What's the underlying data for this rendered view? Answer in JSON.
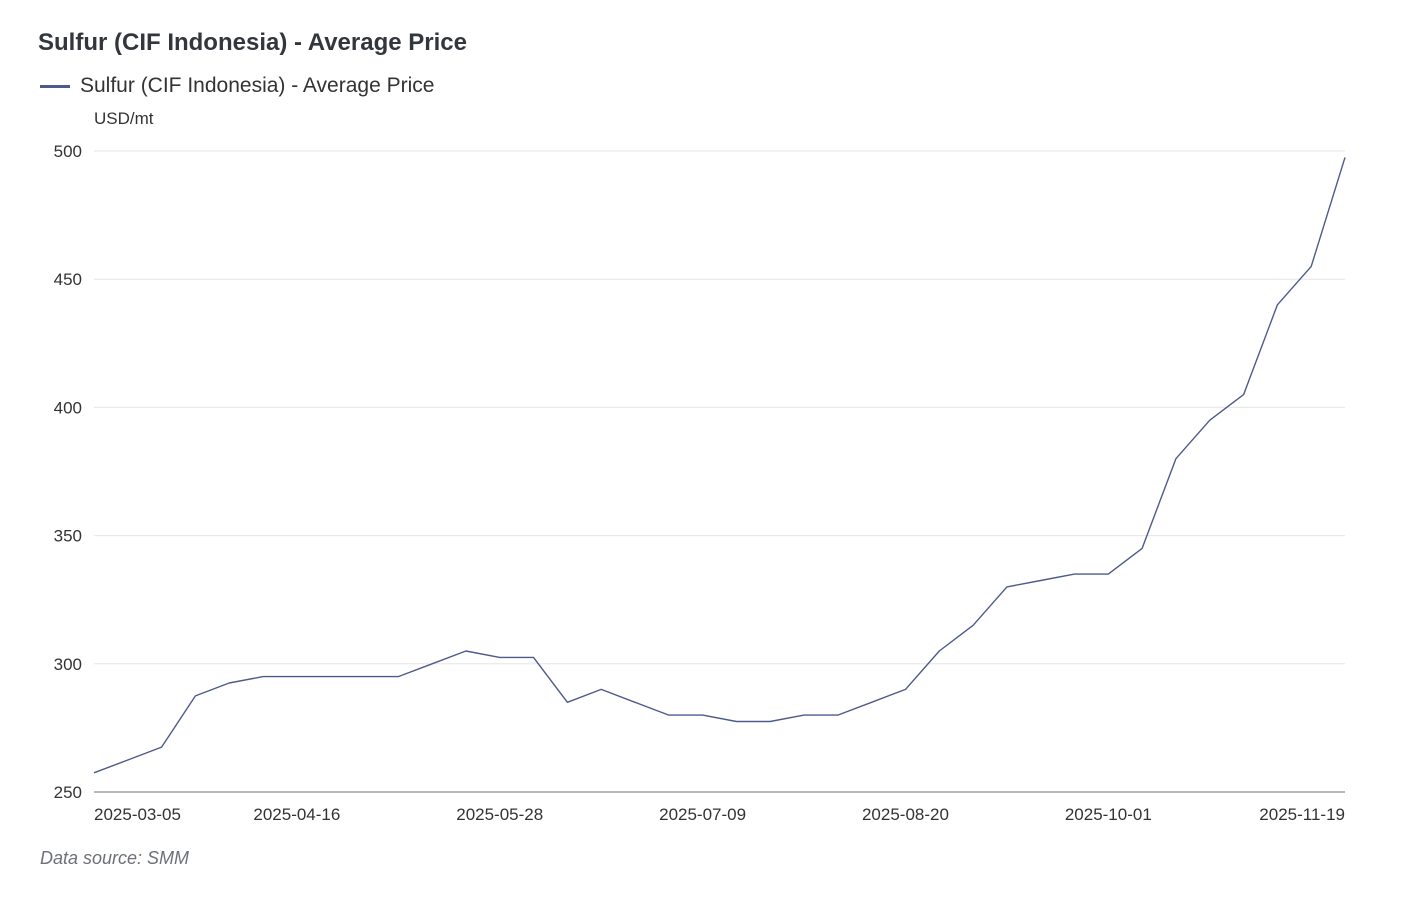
{
  "chart_data": {
    "type": "line",
    "title": "Sulfur (CIF Indonesia) - Average Price",
    "ylabel": "USD/mt",
    "xlabel": "",
    "ylim": [
      250,
      500
    ],
    "yticks": [
      250,
      300,
      350,
      400,
      450,
      500
    ],
    "xtick_labels": [
      "2025-03-05",
      "2025-04-16",
      "2025-05-28",
      "2025-07-09",
      "2025-08-20",
      "2025-10-01",
      "2025-11-19"
    ],
    "xtick_index": [
      0,
      6,
      12,
      18,
      24,
      30,
      37
    ],
    "grid": true,
    "legend": "top-left",
    "color": "#4e5a8c",
    "series": [
      {
        "name": "Sulfur (CIF Indonesia) - Average Price",
        "start_date": "2025-03-05",
        "interval": "weekly",
        "values": [
          257.5,
          262.5,
          267.5,
          287.5,
          292.5,
          295,
          295,
          295,
          295,
          295,
          300,
          305,
          302.5,
          302.5,
          285,
          290,
          285,
          280,
          280,
          277.5,
          277.5,
          280,
          280,
          285,
          290,
          305,
          315,
          330,
          332.5,
          335,
          335,
          345,
          380,
          395,
          405,
          440,
          455,
          497.5
        ]
      }
    ]
  },
  "source": "Data source:  SMM"
}
